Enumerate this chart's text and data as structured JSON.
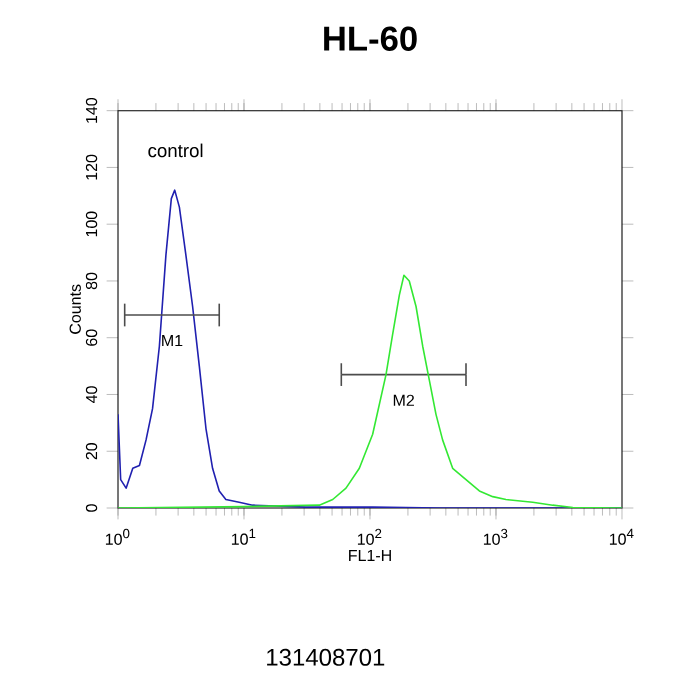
{
  "chart_data": {
    "type": "line",
    "title": "HL-60",
    "xlabel": "FL1-H",
    "ylabel": "Counts",
    "log": "x",
    "grid": false,
    "legend": false,
    "marker": "none",
    "line_style": "solid",
    "xlim": [
      1,
      10000
    ],
    "ylim": [
      0,
      140
    ],
    "xticks": [
      {
        "value": 1,
        "label": "10$^{0}$"
      },
      {
        "value": 10,
        "label": "10$^{1}$"
      },
      {
        "value": 100,
        "label": "10$^{2}$"
      },
      {
        "value": 1000,
        "label": "10$^{3}$"
      },
      {
        "value": 10000,
        "label": "10$^{4}$"
      }
    ],
    "yticks": [
      0,
      20,
      40,
      60,
      80,
      100,
      120,
      140
    ],
    "series": [
      {
        "color": "#2020b0",
        "x": [
          1,
          1.05,
          1.16,
          1.31,
          1.48,
          1.67,
          1.88,
          2.13,
          2.4,
          2.65,
          2.82,
          3.07,
          3.46,
          3.91,
          4.42,
          4.99,
          5.63,
          6.36,
          7.18,
          9.15,
          11.7,
          31,
          105,
          355,
          10000
        ],
        "values": [
          33,
          10,
          7,
          14,
          15,
          24,
          35,
          57,
          89,
          109,
          112,
          106,
          89,
          71,
          50,
          28,
          14,
          6,
          3,
          2,
          1,
          0.3,
          0.3,
          0,
          0
        ]
      },
      {
        "name": "M1",
        "color": "#4c4c4c",
        "x": [
          1.13,
          6.36
        ],
        "values": [
          68,
          68
        ],
        "errors": [
          4,
          4
        ]
      },
      {
        "name": "M2",
        "color": "#4c4c4c",
        "x": [
          59.2,
          578
        ],
        "values": [
          47,
          47
        ],
        "errors": [
          4,
          4
        ]
      },
      {
        "color": "#33e833",
        "x": [
          1,
          10,
          39.6,
          50.6,
          64.5,
          82.3,
          105,
          134,
          151,
          171,
          186,
          205,
          232,
          262,
          296,
          334,
          377,
          453,
          578,
          738,
          942,
          1200,
          1955,
          2820,
          4070,
          10000
        ],
        "values": [
          0,
          0.5,
          1,
          3,
          7,
          14,
          26,
          47,
          61,
          75,
          82,
          80,
          71,
          57,
          45,
          33,
          24,
          14,
          10,
          6,
          4,
          3,
          2,
          1,
          0.2,
          0
        ]
      }
    ],
    "annotations": [
      "control",
      "131408701"
    ]
  }
}
